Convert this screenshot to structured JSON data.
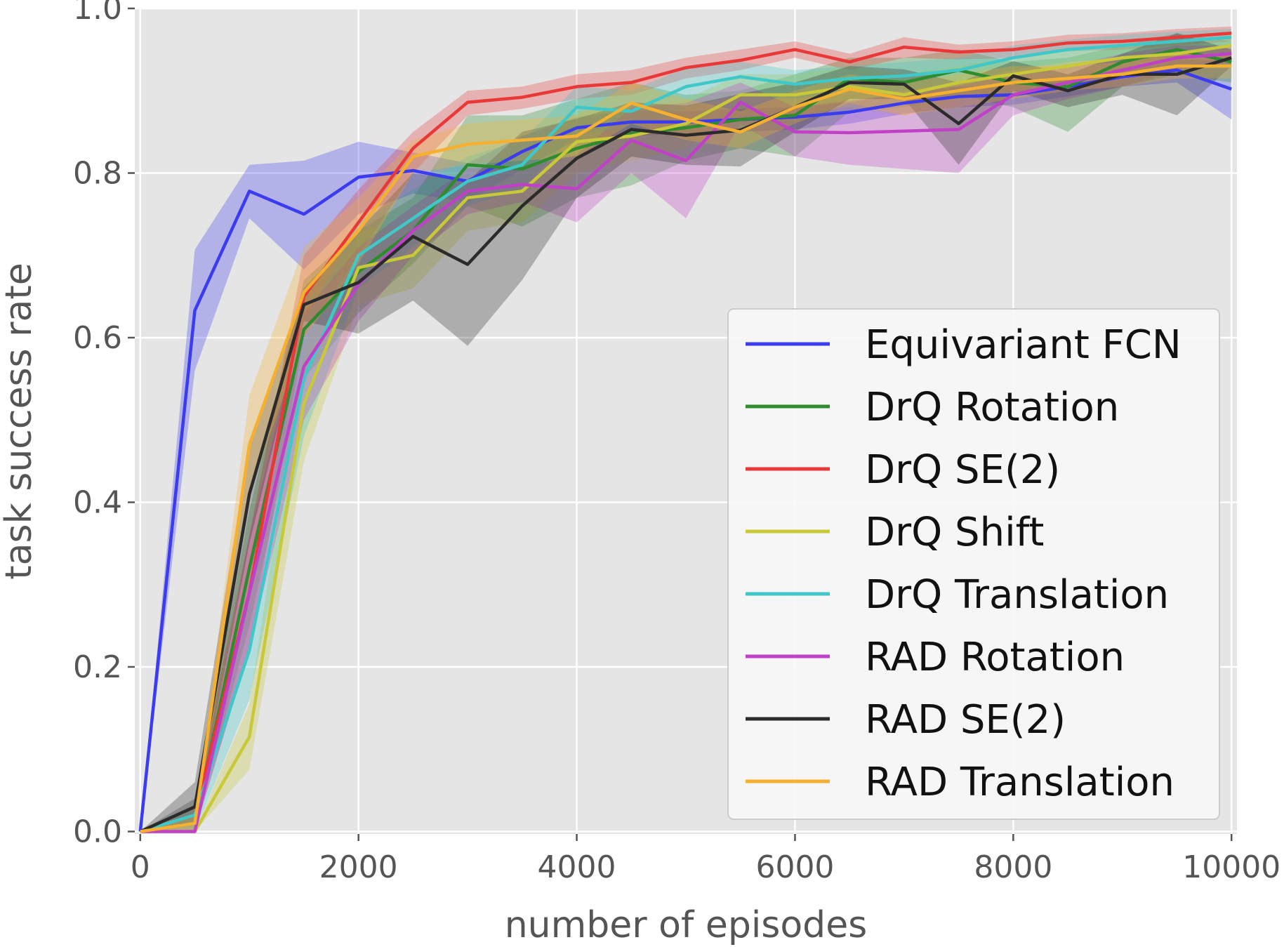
{
  "chart_data": {
    "type": "line",
    "xlabel": "number of episodes",
    "ylabel": "task success rate",
    "xlim": [
      -50,
      10050
    ],
    "ylim": [
      -0.003,
      1.0
    ],
    "x_ticks": [
      0,
      2000,
      4000,
      6000,
      8000,
      10000
    ],
    "x_tick_labels": [
      "0",
      "2000",
      "4000",
      "6000",
      "8000",
      "10000"
    ],
    "y_ticks": [
      0.0,
      0.2,
      0.4,
      0.6,
      0.8,
      1.0
    ],
    "y_tick_labels": [
      "0.0",
      "0.2",
      "0.4",
      "0.6",
      "0.8",
      "1.0"
    ],
    "grid": true,
    "legend_position": "center-right",
    "x": [
      0,
      500,
      1000,
      1500,
      2000,
      2500,
      3000,
      3500,
      4000,
      4500,
      5000,
      5500,
      6000,
      6500,
      7000,
      7500,
      8000,
      8500,
      9000,
      9500,
      10000
    ],
    "series": [
      {
        "name": "Equivariant FCN",
        "color": "#3b3bef",
        "values": [
          0.0,
          0.633,
          0.778,
          0.75,
          0.795,
          0.803,
          0.79,
          0.826,
          0.855,
          0.862,
          0.862,
          0.865,
          0.868,
          0.874,
          0.885,
          0.893,
          0.895,
          0.905,
          0.917,
          0.925,
          0.902
        ],
        "lower": [
          0.0,
          0.56,
          0.745,
          0.683,
          0.75,
          0.775,
          0.765,
          0.805,
          0.84,
          0.845,
          0.848,
          0.85,
          0.853,
          0.86,
          0.872,
          0.88,
          0.883,
          0.893,
          0.905,
          0.91,
          0.865
        ],
        "upper": [
          0.0,
          0.707,
          0.81,
          0.815,
          0.838,
          0.825,
          0.812,
          0.845,
          0.868,
          0.876,
          0.875,
          0.878,
          0.88,
          0.886,
          0.897,
          0.905,
          0.907,
          0.917,
          0.928,
          0.938,
          0.937
        ]
      },
      {
        "name": "DrQ Rotation",
        "color": "#2e8b2e",
        "values": [
          0.0,
          0.01,
          0.32,
          0.61,
          0.68,
          0.73,
          0.81,
          0.805,
          0.83,
          0.848,
          0.855,
          0.865,
          0.87,
          0.915,
          0.91,
          0.925,
          0.91,
          0.905,
          0.935,
          0.95,
          0.935
        ],
        "lower": [
          0.0,
          0.0,
          0.25,
          0.55,
          0.63,
          0.69,
          0.76,
          0.735,
          0.77,
          0.785,
          0.815,
          0.83,
          0.82,
          0.875,
          0.88,
          0.895,
          0.88,
          0.85,
          0.905,
          0.92,
          0.91
        ],
        "upper": [
          0.0,
          0.03,
          0.39,
          0.67,
          0.73,
          0.77,
          0.87,
          0.87,
          0.89,
          0.91,
          0.895,
          0.9,
          0.92,
          0.94,
          0.94,
          0.95,
          0.935,
          0.94,
          0.955,
          0.97,
          0.96
        ]
      },
      {
        "name": "DrQ SE(2)",
        "color": "#e83838",
        "values": [
          0.0,
          0.02,
          0.29,
          0.65,
          0.74,
          0.83,
          0.886,
          0.892,
          0.905,
          0.91,
          0.928,
          0.937,
          0.95,
          0.935,
          0.953,
          0.947,
          0.95,
          0.958,
          0.96,
          0.965,
          0.97
        ],
        "lower": [
          0.0,
          0.0,
          0.22,
          0.6,
          0.7,
          0.8,
          0.87,
          0.878,
          0.89,
          0.895,
          0.915,
          0.925,
          0.94,
          0.925,
          0.94,
          0.938,
          0.94,
          0.948,
          0.95,
          0.955,
          0.96
        ],
        "upper": [
          0.0,
          0.04,
          0.36,
          0.7,
          0.78,
          0.85,
          0.9,
          0.905,
          0.92,
          0.925,
          0.94,
          0.95,
          0.96,
          0.945,
          0.965,
          0.956,
          0.96,
          0.968,
          0.97,
          0.975,
          0.978
        ]
      },
      {
        "name": "DrQ Shift",
        "color": "#c8c838",
        "values": [
          0.0,
          0.0,
          0.115,
          0.52,
          0.685,
          0.7,
          0.77,
          0.778,
          0.838,
          0.845,
          0.86,
          0.895,
          0.895,
          0.905,
          0.895,
          0.91,
          0.92,
          0.93,
          0.94,
          0.945,
          0.955
        ],
        "lower": [
          0.0,
          0.0,
          0.075,
          0.45,
          0.64,
          0.66,
          0.73,
          0.74,
          0.8,
          0.815,
          0.83,
          0.87,
          0.87,
          0.88,
          0.87,
          0.89,
          0.9,
          0.91,
          0.92,
          0.93,
          0.94
        ],
        "upper": [
          0.0,
          0.0,
          0.155,
          0.59,
          0.73,
          0.74,
          0.81,
          0.815,
          0.875,
          0.875,
          0.89,
          0.92,
          0.92,
          0.93,
          0.92,
          0.93,
          0.94,
          0.95,
          0.958,
          0.96,
          0.968
        ]
      },
      {
        "name": "DrQ Translation",
        "color": "#40c8c8",
        "values": [
          0.0,
          0.02,
          0.22,
          0.55,
          0.7,
          0.745,
          0.79,
          0.81,
          0.88,
          0.875,
          0.905,
          0.917,
          0.908,
          0.915,
          0.918,
          0.925,
          0.94,
          0.95,
          0.955,
          0.96,
          0.965
        ],
        "lower": [
          0.0,
          0.0,
          0.16,
          0.48,
          0.66,
          0.71,
          0.76,
          0.78,
          0.85,
          0.85,
          0.88,
          0.895,
          0.89,
          0.9,
          0.9,
          0.91,
          0.925,
          0.935,
          0.94,
          0.948,
          0.955
        ],
        "upper": [
          0.0,
          0.04,
          0.28,
          0.62,
          0.74,
          0.78,
          0.82,
          0.84,
          0.905,
          0.9,
          0.928,
          0.935,
          0.925,
          0.93,
          0.935,
          0.94,
          0.955,
          0.962,
          0.968,
          0.972,
          0.975
        ]
      },
      {
        "name": "RAD Rotation",
        "color": "#c040c8",
        "values": [
          0.0,
          0.0,
          0.29,
          0.565,
          0.665,
          0.73,
          0.778,
          0.786,
          0.781,
          0.84,
          0.815,
          0.886,
          0.85,
          0.849,
          0.851,
          0.853,
          0.895,
          0.91,
          0.925,
          0.94,
          0.945
        ],
        "lower": [
          0.0,
          0.0,
          0.22,
          0.5,
          0.62,
          0.7,
          0.75,
          0.765,
          0.74,
          0.8,
          0.745,
          0.86,
          0.82,
          0.81,
          0.805,
          0.8,
          0.87,
          0.89,
          0.905,
          0.925,
          0.935
        ],
        "upper": [
          0.0,
          0.0,
          0.36,
          0.63,
          0.71,
          0.76,
          0.806,
          0.807,
          0.822,
          0.88,
          0.885,
          0.91,
          0.88,
          0.888,
          0.897,
          0.906,
          0.92,
          0.93,
          0.945,
          0.955,
          0.955
        ]
      },
      {
        "name": "RAD SE(2)",
        "color": "#2b2b2b",
        "values": [
          0.0,
          0.03,
          0.41,
          0.64,
          0.667,
          0.723,
          0.689,
          0.76,
          0.818,
          0.853,
          0.846,
          0.852,
          0.88,
          0.91,
          0.908,
          0.86,
          0.918,
          0.9,
          0.92,
          0.92,
          0.94
        ],
        "lower": [
          0.0,
          0.01,
          0.35,
          0.62,
          0.605,
          0.645,
          0.59,
          0.67,
          0.77,
          0.82,
          0.81,
          0.808,
          0.85,
          0.89,
          0.89,
          0.81,
          0.9,
          0.88,
          0.895,
          0.87,
          0.93
        ],
        "upper": [
          0.0,
          0.06,
          0.47,
          0.66,
          0.73,
          0.8,
          0.79,
          0.85,
          0.866,
          0.886,
          0.882,
          0.896,
          0.91,
          0.93,
          0.926,
          0.91,
          0.936,
          0.92,
          0.945,
          0.97,
          0.95
        ]
      },
      {
        "name": "RAD Translation",
        "color": "#f5b030",
        "values": [
          0.0,
          0.01,
          0.47,
          0.655,
          0.73,
          0.82,
          0.835,
          0.84,
          0.845,
          0.885,
          0.865,
          0.85,
          0.88,
          0.902,
          0.89,
          0.9,
          0.91,
          0.915,
          0.92,
          0.93,
          0.93
        ],
        "lower": [
          0.0,
          0.0,
          0.41,
          0.6,
          0.69,
          0.8,
          0.81,
          0.815,
          0.82,
          0.86,
          0.84,
          0.83,
          0.86,
          0.885,
          0.87,
          0.88,
          0.89,
          0.9,
          0.905,
          0.915,
          0.915
        ],
        "upper": [
          0.0,
          0.02,
          0.53,
          0.71,
          0.77,
          0.84,
          0.86,
          0.865,
          0.87,
          0.91,
          0.89,
          0.875,
          0.9,
          0.92,
          0.91,
          0.92,
          0.93,
          0.93,
          0.935,
          0.945,
          0.945
        ]
      }
    ]
  }
}
